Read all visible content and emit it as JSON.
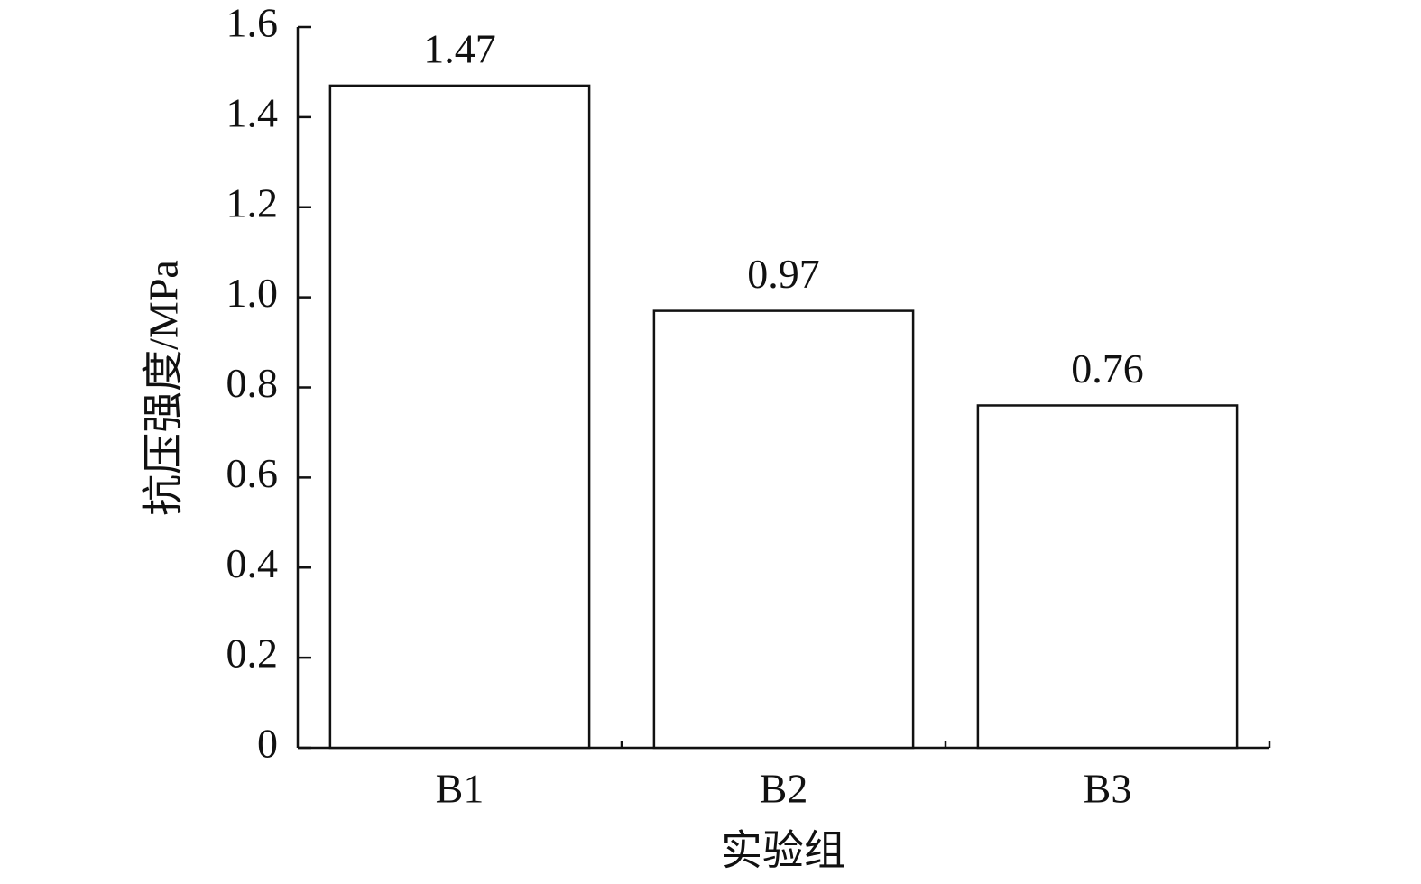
{
  "chart_data": {
    "type": "bar",
    "x_label": "实验组",
    "y_label": "抗压强度/MPa",
    "categories": [
      "B1",
      "B2",
      "B3"
    ],
    "values": [
      1.47,
      0.97,
      0.76
    ],
    "color": "#ffffff",
    "ylim": [
      0,
      1.6
    ],
    "yticks": [
      0,
      0.2,
      0.4,
      0.6,
      0.8,
      {
        "value": 1,
        "label": "1.0"
      },
      1.2,
      1.4,
      1.6
    ],
    "grid": false
  }
}
